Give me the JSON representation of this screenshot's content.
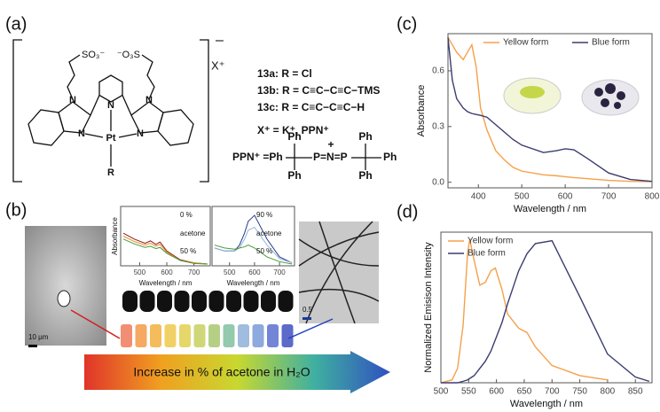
{
  "panels": [
    "(a)",
    "(b)",
    "(c)",
    "(d)"
  ],
  "structure": {
    "charge": "–",
    "counterion": "X⁺",
    "sulfonates": [
      "SO₃⁻",
      "⁻O₃S"
    ],
    "atoms": [
      "N",
      "N",
      "N",
      "N",
      "N",
      "Pt",
      "R"
    ],
    "compounds": [
      "13a: R = Cl",
      "13b: R = C≡C−C≡C−TMS",
      "13c: R = C≡C−C≡C−H"
    ],
    "counterions": "X⁺ = K⁺, PPN⁺",
    "ppn": [
      "PPN⁺ =Ph",
      "P=N=P",
      "+",
      "Ph",
      "Ph",
      "Ph",
      "Ph",
      "Ph"
    ]
  },
  "scale_bars": [
    "10 μm",
    "0.5"
  ],
  "arrow_text": "Increase in % of acetone in H₂O",
  "chart_data": [
    {
      "type": "line",
      "xlabel": "Wavelength / nm",
      "ylabel": "Absorbance",
      "x": [
        330,
        340,
        350,
        365,
        375,
        385,
        395,
        405,
        420,
        440,
        460,
        480,
        500,
        550,
        580,
        600,
        620,
        650,
        700,
        750,
        800
      ],
      "series": [
        {
          "name": "Yellow form",
          "color": "#f5a04a",
          "values": [
            0.78,
            0.74,
            0.7,
            0.66,
            0.7,
            0.74,
            0.62,
            0.4,
            0.28,
            0.17,
            0.12,
            0.08,
            0.06,
            0.04,
            0.035,
            0.03,
            0.025,
            0.02,
            0.01,
            0.005,
            0.003
          ]
        },
        {
          "name": "Blue form",
          "color": "#3b3b70",
          "values": [
            0.78,
            0.55,
            0.45,
            0.4,
            0.38,
            0.37,
            0.365,
            0.36,
            0.35,
            0.31,
            0.27,
            0.23,
            0.2,
            0.16,
            0.17,
            0.18,
            0.175,
            0.13,
            0.05,
            0.015,
            0.005
          ]
        }
      ],
      "xlim": [
        330,
        800
      ],
      "ylim": [
        -0.03,
        0.8
      ],
      "xticks": [
        400,
        500,
        600,
        700,
        800
      ],
      "yticks": [
        {
          "value": 0,
          "label": "0.0"
        },
        0.3,
        0.6
      ],
      "legend": "top"
    },
    {
      "type": "line",
      "xlabel": "Wavelength / nm",
      "ylabel": "Normalized Emisison Intensity",
      "x": [
        500,
        520,
        530,
        540,
        548,
        552,
        560,
        570,
        580,
        590,
        598,
        610,
        620,
        640,
        655,
        670,
        700,
        750,
        800,
        850,
        875
      ],
      "series": [
        {
          "name": "Yellow form",
          "color": "#f5a04a",
          "values": [
            0,
            0.02,
            0.1,
            0.4,
            0.9,
            1.0,
            0.85,
            0.68,
            0.7,
            0.78,
            0.8,
            0.65,
            0.48,
            0.38,
            0.35,
            0.25,
            0.12,
            0.05,
            0.02,
            null,
            null
          ]
        },
        {
          "name": "Blue form",
          "color": "#3b3b70",
          "values": [
            0,
            0,
            0,
            0.01,
            0.02,
            0.03,
            0.05,
            0.1,
            0.15,
            0.22,
            0.3,
            0.42,
            0.55,
            0.78,
            0.9,
            0.97,
            0.99,
            0.6,
            0.2,
            0.04,
            0.01
          ]
        }
      ],
      "xlim": [
        500,
        880
      ],
      "ylim": [
        0,
        1.05
      ],
      "xticks": [
        500,
        550,
        600,
        650,
        700,
        750,
        800,
        850
      ],
      "legend": "upper left"
    },
    {
      "type": "line",
      "xlabel": "Wavelength / nm",
      "ylabel": "Absorbance",
      "x": [
        440,
        480,
        520,
        540,
        560,
        575,
        600,
        650,
        700,
        750
      ],
      "series": [
        {
          "color": "#8b1a1a",
          "values": [
            0.55,
            0.45,
            0.38,
            0.42,
            0.36,
            0.4,
            0.25,
            0.1,
            0.05,
            0.03
          ]
        },
        {
          "color": "#e8902a",
          "values": [
            0.5,
            0.41,
            0.35,
            0.38,
            0.33,
            0.36,
            0.23,
            0.09,
            0.05,
            0.03
          ]
        },
        {
          "color": "#4a9a3a",
          "values": [
            0.45,
            0.37,
            0.31,
            0.33,
            0.29,
            0.31,
            0.21,
            0.09,
            0.04,
            0.03
          ]
        }
      ],
      "xlim": [
        430,
        760
      ],
      "ylim": [
        0,
        1
      ],
      "xticks": [
        500,
        600,
        700
      ],
      "annotations": [
        "0 %",
        "acetone",
        "50 %"
      ]
    },
    {
      "type": "line",
      "xlabel": "Wavelength / nm",
      "x": [
        440,
        480,
        520,
        540,
        560,
        575,
        600,
        650,
        700,
        750
      ],
      "series": [
        {
          "color": "#2b3a8c",
          "values": [
            0.3,
            0.25,
            0.25,
            0.35,
            0.55,
            0.75,
            0.85,
            0.45,
            0.15,
            0.05
          ]
        },
        {
          "color": "#8fb8d8",
          "values": [
            0.3,
            0.25,
            0.25,
            0.3,
            0.45,
            0.6,
            0.65,
            0.35,
            0.12,
            0.05
          ]
        },
        {
          "color": "#4a9a3a",
          "values": [
            0.35,
            0.3,
            0.28,
            0.3,
            0.32,
            0.35,
            0.3,
            0.15,
            0.07,
            0.03
          ]
        }
      ],
      "xlim": [
        430,
        760
      ],
      "ylim": [
        0,
        1
      ],
      "xticks": [
        500,
        600,
        700
      ],
      "annotations": [
        "90 %",
        "acetone",
        "50 %"
      ]
    }
  ]
}
